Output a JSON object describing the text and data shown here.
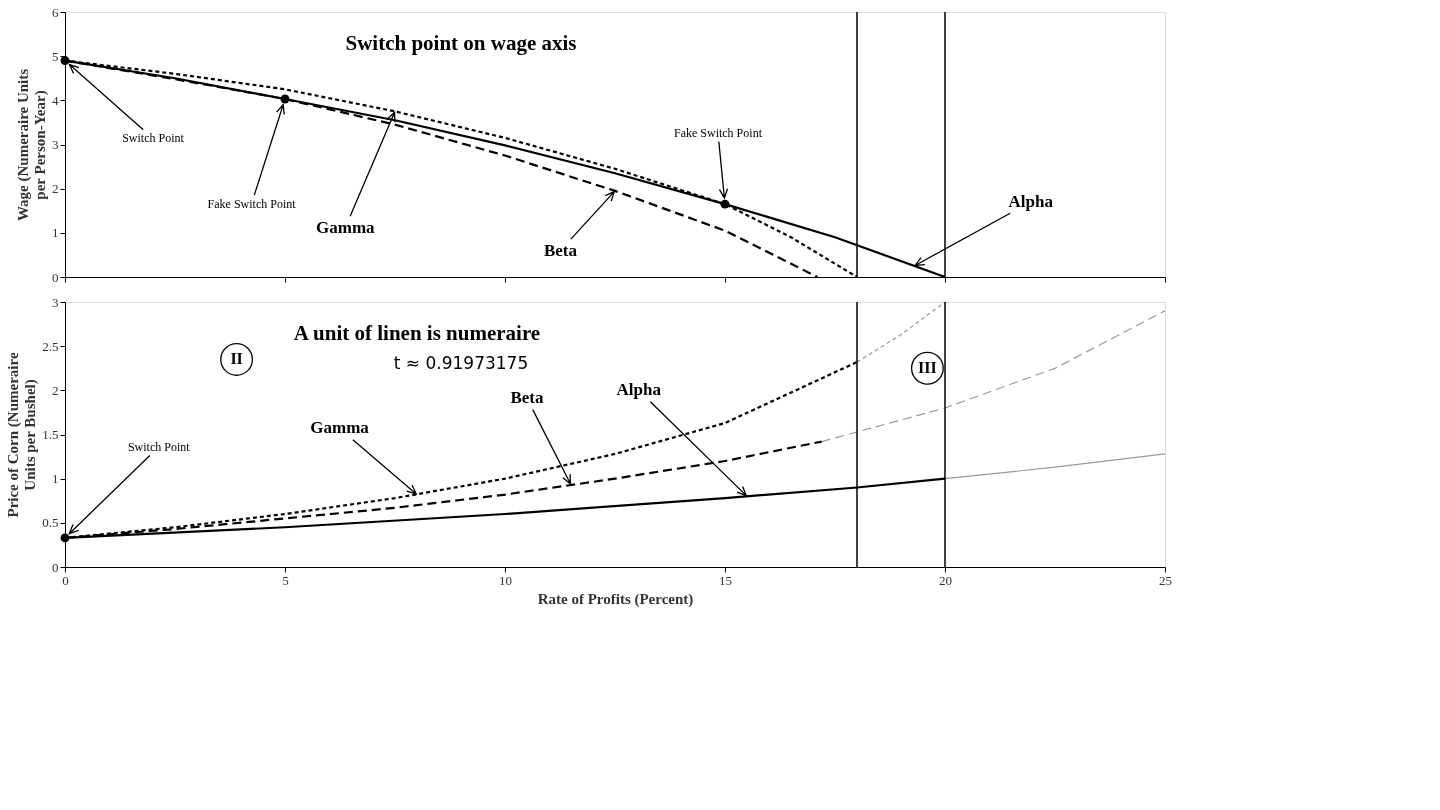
{
  "chart_data": [
    {
      "type": "line",
      "title": "Switch point on wage axis",
      "ylabel": "Wage (Numeraire Units per Person-Year)",
      "xlim": [
        0,
        25
      ],
      "xticks": [
        0,
        5,
        10,
        15,
        20,
        25
      ],
      "ylim": [
        0,
        6
      ],
      "yticks": [
        0,
        1,
        2,
        3,
        4,
        5,
        6
      ],
      "tick_labels": "y",
      "series": [
        {
          "color": "#000000",
          "line_style": "solid",
          "x": [
            0,
            2.5,
            5,
            7.5,
            10,
            12.5,
            15,
            17.5,
            20
          ],
          "values": [
            4.9,
            4.5,
            4.03,
            3.55,
            2.98,
            2.35,
            1.65,
            0.9,
            0
          ]
        },
        {
          "color": "#000000",
          "line_style": "dashed",
          "x": [
            0,
            2.5,
            5,
            7.5,
            10,
            12.5,
            15,
            17.1
          ],
          "values": [
            4.9,
            4.48,
            4.03,
            3.45,
            2.75,
            1.95,
            1.05,
            0
          ]
        },
        {
          "color": "#000000",
          "line_style": "dotted",
          "x": [
            0,
            2.5,
            5,
            7.5,
            10,
            12.5,
            15,
            16.5,
            18
          ],
          "values": [
            4.9,
            4.6,
            4.25,
            3.75,
            3.15,
            2.45,
            1.65,
            0.9,
            0
          ]
        },
        {
          "type": "scatter",
          "color": "#000000",
          "marker": "circle",
          "x": [
            0,
            5,
            15
          ],
          "values": [
            4.9,
            4.03,
            1.65
          ]
        }
      ],
      "ref_lines": [
        {
          "axis": "x",
          "value": 18,
          "color": "#000000"
        },
        {
          "axis": "x",
          "value": 20,
          "color": "#000000"
        }
      ],
      "annotations": [
        {
          "text": "Switch Point",
          "x": 0,
          "y": 4.9
        },
        {
          "text": "Fake Switch Point",
          "x": 5,
          "y": 4.03
        },
        {
          "text": "Fake Switch Point",
          "x": 15,
          "y": 1.65
        },
        {
          "text": "Gamma",
          "x": 7.5,
          "y": 3.75
        },
        {
          "text": "Beta",
          "x": 12.5,
          "y": 1.95
        },
        {
          "text": "Alpha",
          "x": 19.3,
          "y": 0.25
        }
      ]
    },
    {
      "type": "line",
      "title": "A unit of linen is numeraire",
      "subtitle": "t ≈ 0.91973175",
      "xlabel": "Rate of Profits (Percent)",
      "ylabel": "Price of Corn (Numeraire Units per Bushel)",
      "xlim": [
        0,
        25
      ],
      "xticks": [
        0,
        5,
        10,
        15,
        20,
        25
      ],
      "ylim": [
        0,
        3
      ],
      "yticks": [
        0,
        0.5,
        1,
        1.5,
        2,
        2.5,
        3
      ],
      "series": [
        {
          "color": "#000000",
          "line_style": "solid",
          "x": [
            0,
            5,
            10,
            15,
            18,
            20
          ],
          "values": [
            0.33,
            0.45,
            0.6,
            0.78,
            0.9,
            1.0
          ]
        },
        {
          "color": "#999999",
          "line_style": "solid",
          "x": [
            20,
            22.5,
            25
          ],
          "values": [
            1.0,
            1.13,
            1.28
          ]
        },
        {
          "color": "#000000",
          "line_style": "dashed",
          "x": [
            0,
            2.5,
            5,
            7.5,
            10,
            12.5,
            15,
            17.2
          ],
          "values": [
            0.33,
            0.43,
            0.55,
            0.67,
            0.82,
            1.0,
            1.2,
            1.42
          ]
        },
        {
          "color": "#999999",
          "line_style": "dashed",
          "x": [
            17.2,
            20,
            22.5,
            25
          ],
          "values": [
            1.42,
            1.8,
            2.25,
            2.9
          ]
        },
        {
          "color": "#000000",
          "line_style": "dotted",
          "x": [
            0,
            2.5,
            5,
            7.5,
            10,
            12.5,
            15,
            18
          ],
          "values": [
            0.33,
            0.45,
            0.6,
            0.78,
            1.0,
            1.28,
            1.63,
            2.32
          ]
        },
        {
          "color": "#999999",
          "line_style": "dotted",
          "x": [
            18,
            19,
            20
          ],
          "values": [
            2.32,
            2.63,
            3.0
          ]
        },
        {
          "type": "scatter",
          "color": "#000000",
          "marker": "circle",
          "x": [
            0
          ],
          "values": [
            0.33
          ]
        }
      ],
      "ref_lines": [
        {
          "axis": "x",
          "value": 18,
          "color": "#000000"
        },
        {
          "axis": "x",
          "value": 20,
          "color": "#000000"
        }
      ],
      "annotations": [
        {
          "text": "Switch Point",
          "x": 0,
          "y": 0.33
        },
        "II",
        "III",
        {
          "text": "Gamma",
          "x": 8,
          "y": 0.82
        },
        {
          "text": "Beta",
          "x": 11.5,
          "y": 0.93
        },
        {
          "text": "Alpha",
          "x": 15.5,
          "y": 0.8
        }
      ]
    }
  ]
}
